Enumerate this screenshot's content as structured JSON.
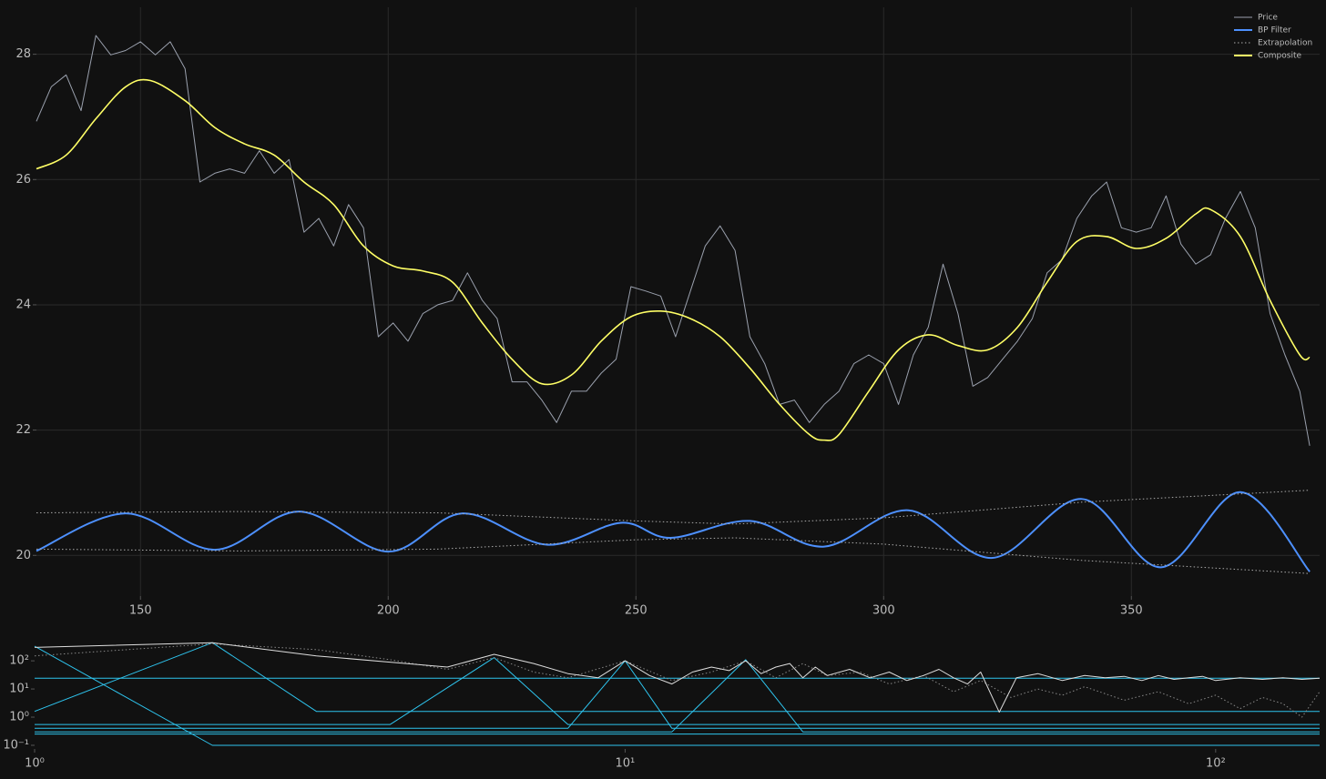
{
  "chart_data": [
    {
      "type": "line",
      "legend": "upper right",
      "grid": true,
      "xlim": [
        129,
        388
      ],
      "ylim": [
        19.35,
        28.75
      ],
      "xticks": [
        150,
        200,
        250,
        300,
        350
      ],
      "yticks": [
        20,
        22,
        24,
        26,
        28
      ],
      "series": [
        {
          "name": "Price",
          "color": "#9aa0ad",
          "style": "solid",
          "x": [
            129,
            132,
            135,
            138,
            141,
            144,
            147,
            150,
            153,
            156,
            159,
            162,
            165,
            168,
            171,
            174,
            177,
            180,
            183,
            186,
            189,
            192,
            195,
            198,
            201,
            204,
            207,
            210,
            213,
            216,
            219,
            222,
            225,
            228,
            231,
            234,
            237,
            240,
            243,
            246,
            249,
            252,
            255,
            258,
            261,
            264,
            267,
            270,
            273,
            276,
            279,
            282,
            285,
            288,
            291,
            294,
            297,
            300,
            303,
            306,
            309,
            312,
            315,
            318,
            321,
            324,
            327,
            330,
            333,
            336,
            339,
            342,
            345,
            348,
            351,
            354,
            357,
            360,
            363,
            366,
            369,
            372,
            375,
            378,
            381,
            384,
            386
          ],
          "values": [
            26.93,
            27.48,
            27.67,
            27.1,
            28.3,
            27.99,
            28.06,
            28.2,
            27.99,
            28.2,
            27.77,
            25.96,
            26.1,
            26.17,
            26.1,
            26.46,
            26.1,
            26.32,
            25.16,
            25.38,
            24.94,
            25.6,
            25.23,
            23.49,
            23.71,
            23.42,
            23.86,
            24.0,
            24.07,
            24.51,
            24.07,
            23.78,
            22.77,
            22.77,
            22.48,
            22.12,
            22.62,
            22.62,
            22.91,
            23.13,
            24.29,
            24.22,
            24.14,
            23.49,
            24.22,
            24.94,
            25.26,
            24.87,
            23.49,
            23.06,
            22.41,
            22.48,
            22.12,
            22.41,
            22.62,
            23.06,
            23.2,
            23.06,
            22.41,
            23.2,
            23.64,
            24.65,
            23.86,
            22.7,
            22.84,
            23.13,
            23.42,
            23.78,
            24.51,
            24.72,
            25.38,
            25.74,
            25.96,
            25.23,
            25.16,
            25.23,
            25.74,
            24.97,
            24.65,
            24.8,
            25.38,
            25.81,
            25.23,
            23.86,
            23.2,
            22.62,
            21.75
          ]
        },
        {
          "name": "BP Filter",
          "color": "#4d90fe",
          "style": "solid",
          "smooth": true,
          "x": [
            129,
            147,
            165,
            182,
            200,
            215,
            232,
            247,
            257,
            273,
            288,
            305,
            322,
            340,
            356,
            372,
            386
          ],
          "values": [
            20.07,
            20.67,
            20.09,
            20.7,
            20.06,
            20.67,
            20.17,
            20.52,
            20.28,
            20.55,
            20.14,
            20.72,
            19.96,
            20.9,
            19.81,
            21.01,
            19.74
          ]
        },
        {
          "name": "Extrapolation",
          "color": "#aaaaaa",
          "style": "dotted",
          "x": [
            129,
            170,
            210,
            250,
            270,
            300,
            340,
            386
          ],
          "upper": [
            20.68,
            20.7,
            20.68,
            20.55,
            20.5,
            20.6,
            20.85,
            21.04
          ],
          "lower": [
            20.1,
            20.07,
            20.1,
            20.25,
            20.28,
            20.18,
            19.92,
            19.71
          ]
        },
        {
          "name": "Composite",
          "color": "#ffff66",
          "style": "solid",
          "smooth": true,
          "x": [
            129,
            135,
            141,
            147,
            152,
            159,
            165,
            171,
            177,
            183,
            189,
            195,
            201,
            207,
            213,
            219,
            225,
            231,
            237,
            243,
            249,
            255,
            261,
            267,
            273,
            279,
            285,
            288,
            291,
            297,
            303,
            309,
            315,
            321,
            327,
            333,
            339,
            345,
            351,
            357,
            363,
            366,
            372,
            378,
            384,
            386
          ],
          "values": [
            26.17,
            26.39,
            26.97,
            27.48,
            27.58,
            27.26,
            26.83,
            26.57,
            26.39,
            25.96,
            25.6,
            24.94,
            24.62,
            24.54,
            24.36,
            23.71,
            23.13,
            22.74,
            22.88,
            23.42,
            23.81,
            23.9,
            23.78,
            23.49,
            22.99,
            22.41,
            21.93,
            21.84,
            21.93,
            22.62,
            23.28,
            23.52,
            23.35,
            23.28,
            23.64,
            24.36,
            25.01,
            25.09,
            24.9,
            25.06,
            25.45,
            25.52,
            25.09,
            24.07,
            23.2,
            23.16
          ]
        }
      ]
    },
    {
      "type": "line",
      "xscale": "log",
      "yscale": "log",
      "xlim": [
        1,
        150
      ],
      "ylim": [
        0.074,
        700
      ],
      "xticks": [
        {
          "value": 1,
          "label": "10⁰"
        },
        {
          "value": 10,
          "label": "10¹"
        },
        {
          "value": 100,
          "label": "10²"
        }
      ],
      "yticks": [
        {
          "value": 0.1,
          "label": "10⁻¹"
        },
        {
          "value": 1,
          "label": "10⁰"
        },
        {
          "value": 10,
          "label": "10¹"
        },
        {
          "value": 100,
          "label": "10²"
        }
      ],
      "series": [
        {
          "color": "#2ec4ee",
          "style": "solid",
          "x": [
            1,
            2,
            150
          ],
          "values": [
            330,
            0.1,
            0.1
          ]
        },
        {
          "color": "#2ec4ee",
          "style": "solid",
          "x": [
            1,
            2,
            3,
            150
          ],
          "values": [
            1.6,
            440,
            1.6,
            1.6
          ]
        },
        {
          "color": "#2ec4ee",
          "style": "solid",
          "x": [
            1,
            150
          ],
          "values": [
            24,
            24
          ]
        },
        {
          "color": "#2ec4ee",
          "style": "solid",
          "x": [
            1,
            4,
            6,
            8,
            150
          ],
          "values": [
            0.55,
            0.55,
            130,
            0.55,
            0.55
          ]
        },
        {
          "color": "#2ec4ee",
          "style": "solid",
          "x": [
            1,
            8,
            10,
            12,
            150
          ],
          "values": [
            0.4,
            0.4,
            100,
            0.4,
            0.4
          ]
        },
        {
          "color": "#2ec4ee",
          "style": "solid",
          "x": [
            1,
            12,
            16,
            20,
            150
          ],
          "values": [
            0.3,
            0.3,
            110,
            0.3,
            0.3
          ]
        },
        {
          "color": "#2ec4ee",
          "style": "solid",
          "x": [
            1,
            150
          ],
          "values": [
            0.25,
            0.25
          ]
        },
        {
          "color": "#888888",
          "style": "dotted",
          "x": [
            1,
            2,
            3,
            4,
            5,
            6,
            7,
            8,
            10,
            12,
            14,
            16,
            18,
            20,
            22,
            25,
            28,
            32,
            36,
            40,
            45,
            50,
            55,
            60,
            70,
            80,
            90,
            100,
            110,
            120,
            130,
            140,
            150
          ],
          "values": [
            150,
            400,
            250,
            110,
            50,
            130,
            40,
            25,
            100,
            20,
            40,
            100,
            25,
            80,
            30,
            40,
            15,
            30,
            8,
            20,
            5,
            10,
            6,
            12,
            4,
            8,
            3,
            6,
            2,
            5,
            3,
            1,
            8
          ]
        },
        {
          "color": "#dddddd",
          "style": "solid",
          "x": [
            1,
            2,
            3,
            4,
            5,
            6,
            7,
            8,
            9,
            10,
            11,
            12,
            13,
            14,
            15,
            16,
            17,
            18,
            19,
            20,
            21,
            22,
            24,
            26,
            28,
            30,
            32,
            34,
            36,
            38,
            40,
            43,
            46,
            50,
            55,
            60,
            65,
            70,
            75,
            80,
            85,
            90,
            95,
            100,
            110,
            120,
            130,
            140,
            150
          ],
          "values": [
            300,
            440,
            150,
            90,
            60,
            170,
            80,
            35,
            25,
            100,
            30,
            15,
            40,
            60,
            45,
            100,
            35,
            60,
            80,
            25,
            60,
            30,
            50,
            25,
            40,
            20,
            30,
            50,
            25,
            15,
            40,
            1.5,
            25,
            35,
            20,
            30,
            25,
            28,
            20,
            30,
            22,
            25,
            28,
            20,
            25,
            22,
            25,
            22,
            24
          ]
        }
      ]
    }
  ]
}
